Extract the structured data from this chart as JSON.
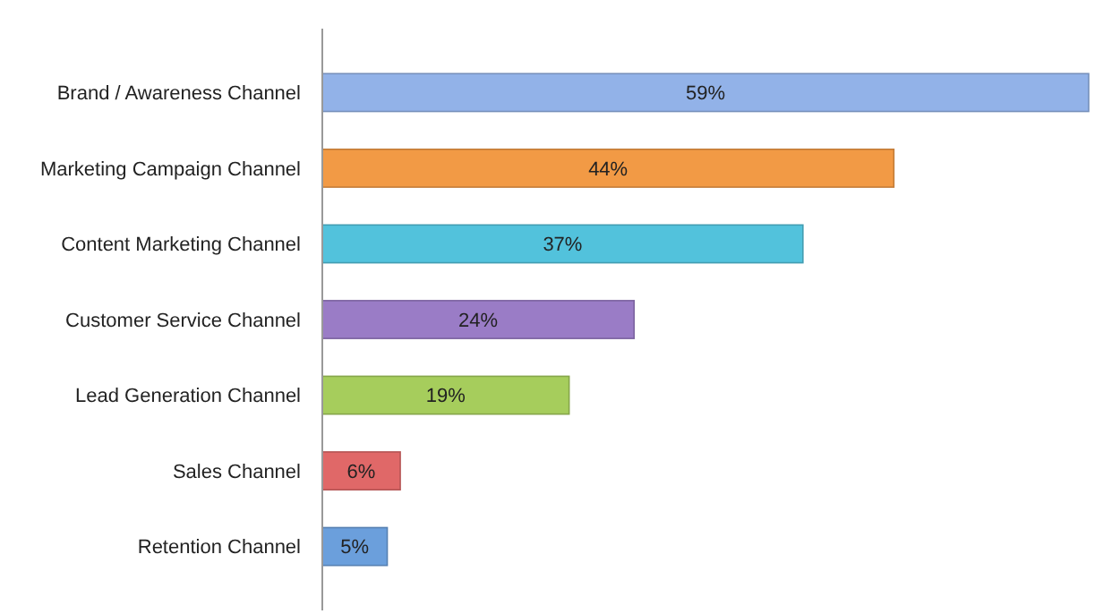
{
  "chart_data": {
    "type": "bar",
    "orientation": "horizontal",
    "categories": [
      "Brand / Awareness Channel",
      "Marketing Campaign Channel",
      "Content Marketing Channel",
      "Customer Service Channel",
      "Lead Generation Channel",
      "Sales Channel",
      "Retention Channel"
    ],
    "values": [
      59,
      44,
      37,
      24,
      19,
      6,
      5
    ],
    "colors": [
      "#92b2e8",
      "#f29a45",
      "#52c2dc",
      "#9a7cc6",
      "#a6cd5c",
      "#e06868",
      "#6b9fdc"
    ],
    "value_labels": [
      "59%",
      "44%",
      "37%",
      "24%",
      "19%",
      "6%",
      "5%"
    ]
  }
}
